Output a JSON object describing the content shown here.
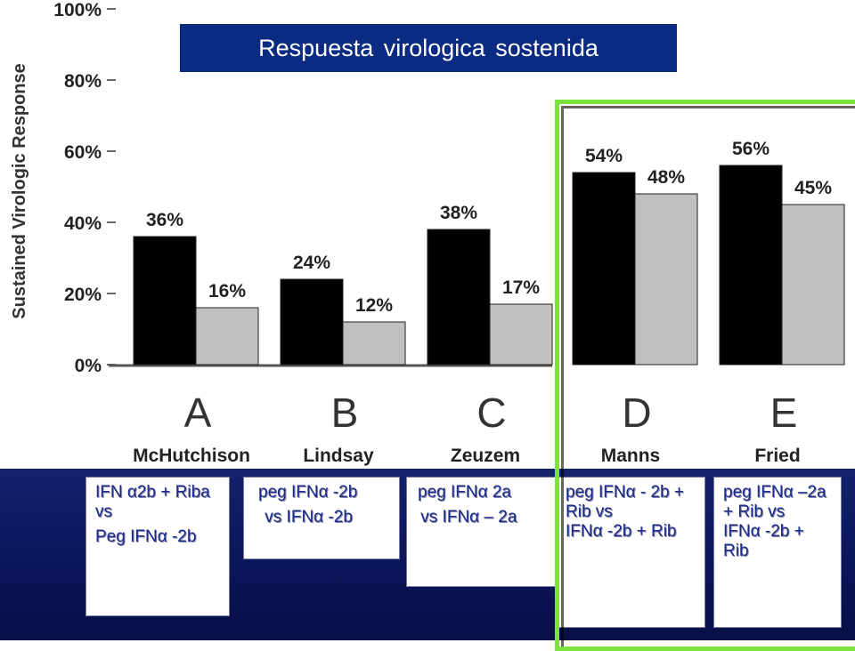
{
  "title": "Respuesta  virologica sostenida",
  "chart_data": {
    "type": "bar",
    "ylabel": "Sustained Virologic Response",
    "ylim": [
      0,
      100
    ],
    "yticks": [
      "0%",
      "20%",
      "40%",
      "60%",
      "80%",
      "100%"
    ],
    "categories": [
      "A",
      "B",
      "C",
      "D",
      "E"
    ],
    "authors": [
      "McHutchison",
      "Lindsay",
      "Zeuzem",
      "Manns",
      "Fried"
    ],
    "series": [
      {
        "values": [
          36,
          24,
          38,
          54,
          56
        ],
        "labels": [
          "36%",
          "24%",
          "38%",
          "54%",
          "56%"
        ],
        "color": "#000000"
      },
      {
        "values": [
          16,
          12,
          17,
          48,
          45
        ],
        "labels": [
          "16%",
          "12%",
          "17%",
          "48%",
          "45%"
        ],
        "color": "#c0c0c0"
      }
    ]
  },
  "descriptions": [
    {
      "lines": [
        "IFN α2b + Riba vs",
        "Peg IFNα -2b"
      ]
    },
    {
      "lines": [
        "peg IFNα -2b",
        " vs IFNα -2b"
      ]
    },
    {
      "lines": [
        "peg IFNα 2a",
        " vs IFNα – 2a"
      ]
    },
    {
      "lines": [
        "peg IFNα - 2b + Rib vs",
        "IFNα -2b + Rib"
      ]
    },
    {
      "lines": [
        "peg IFNα –2a + Rib vs",
        "IFNα -2b + Rib"
      ]
    }
  ],
  "colors": {
    "title_bg": "#0b2b82",
    "band_bg": "#0a1457",
    "highlight": "#7be43b",
    "desc_text": "#1a2a8a"
  }
}
